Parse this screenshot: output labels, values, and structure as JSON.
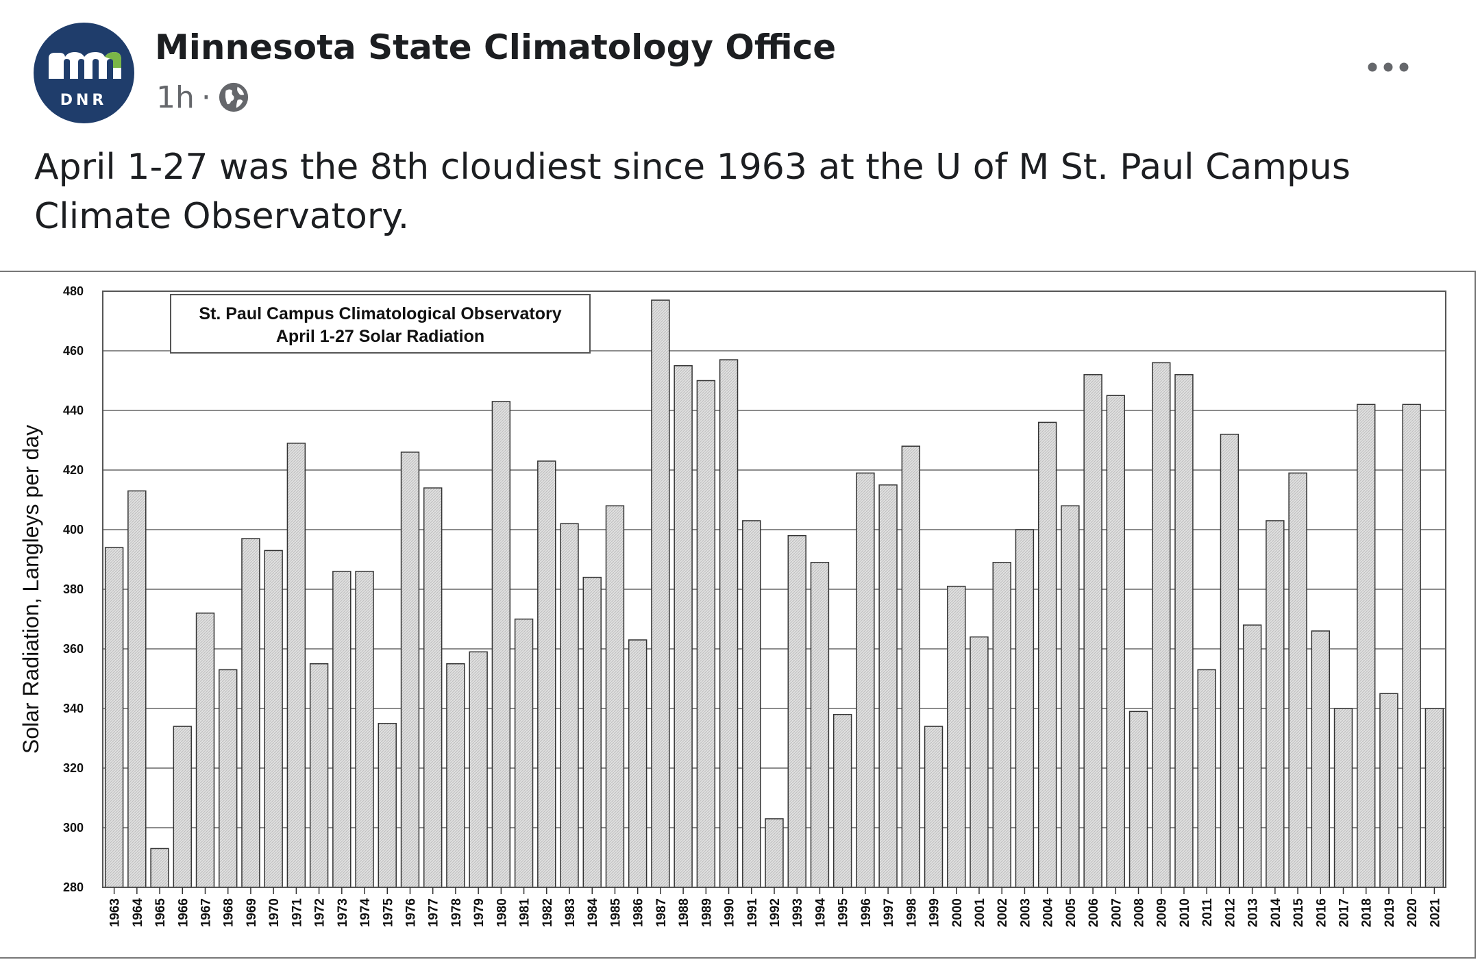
{
  "post": {
    "page_name": "Minnesota State Climatology Office",
    "time": "1h",
    "separator": "·",
    "privacy_icon": "globe-icon",
    "more_icon": "more-horizontal-icon",
    "avatar": {
      "logo_text": "mn",
      "sub_text": "DNR",
      "color": "#1f3d6b"
    },
    "text": "April 1-27 was the 8th cloudiest since 1963 at the U of M St. Paul Campus Climate Observatory."
  },
  "chart_data": {
    "type": "bar",
    "title": "St. Paul Campus Climatological Observatory",
    "subtitle": "April 1-27 Solar Radiation",
    "ylabel": "Solar Radiation, Langleys per day",
    "xlabel": "",
    "ylim": [
      280,
      480
    ],
    "yticks": [
      280,
      300,
      320,
      340,
      360,
      380,
      400,
      420,
      440,
      460,
      480
    ],
    "grid": "horizontal",
    "legend": "none",
    "bar_color": "#d9d9d9",
    "categories": [
      "1963",
      "1964",
      "1965",
      "1966",
      "1967",
      "1968",
      "1969",
      "1970",
      "1971",
      "1972",
      "1973",
      "1974",
      "1975",
      "1976",
      "1977",
      "1978",
      "1979",
      "1980",
      "1981",
      "1982",
      "1983",
      "1984",
      "1985",
      "1986",
      "1987",
      "1988",
      "1989",
      "1990",
      "1991",
      "1992",
      "1993",
      "1994",
      "1995",
      "1996",
      "1997",
      "1998",
      "1999",
      "2000",
      "2001",
      "2002",
      "2003",
      "2004",
      "2005",
      "2006",
      "2007",
      "2008",
      "2009",
      "2010",
      "2011",
      "2012",
      "2013",
      "2014",
      "2015",
      "2016",
      "2017",
      "2018",
      "2019",
      "2020",
      "2021"
    ],
    "values": [
      394,
      413,
      293,
      334,
      372,
      353,
      397,
      393,
      429,
      355,
      386,
      386,
      335,
      426,
      414,
      355,
      359,
      443,
      370,
      423,
      402,
      384,
      408,
      363,
      477,
      455,
      450,
      457,
      403,
      303,
      398,
      389,
      338,
      419,
      415,
      428,
      334,
      381,
      364,
      389,
      400,
      436,
      408,
      452,
      445,
      339,
      456,
      452,
      353,
      432,
      368,
      403,
      419,
      366,
      340,
      442,
      345,
      442,
      340
    ]
  }
}
